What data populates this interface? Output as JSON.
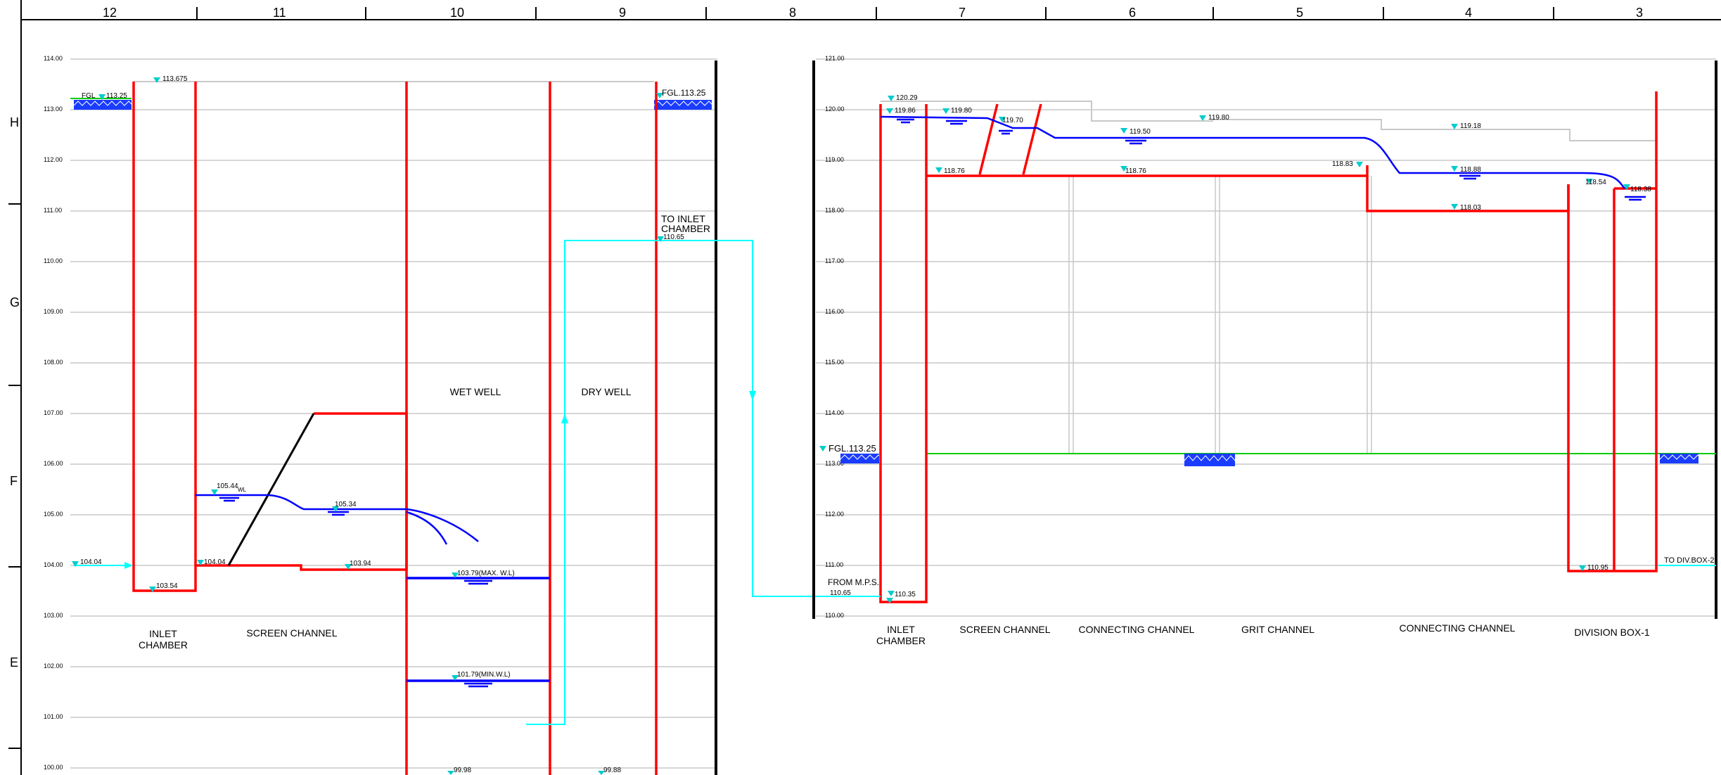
{
  "ruler": {
    "columns": [
      "12",
      "11",
      "10",
      "9",
      "8",
      "7",
      "6",
      "5",
      "4",
      "3"
    ],
    "rows": [
      "H",
      "G",
      "F",
      "E"
    ]
  },
  "left_profile": {
    "levels": [
      "114.00",
      "113.00",
      "112.00",
      "111.00",
      "110.00",
      "109.00",
      "108.00",
      "107.00",
      "106.00",
      "105.00",
      "104.00",
      "103.00",
      "102.00",
      "101.00",
      "100.00"
    ],
    "labels": {
      "inlet_chamber": [
        "INLET",
        "CHAMBER"
      ],
      "screen_channel": "SCREEN CHANNEL",
      "wet_well": "WET WELL",
      "dry_well": "DRY WELL",
      "to_inlet_chamber": [
        "TO INLET",
        "CHAMBER"
      ]
    },
    "elevations": {
      "fgl_left": "FGL",
      "fgl_left_value": "113.25",
      "top_inlet": "113.675",
      "fgl_right": "FGL.113.25",
      "to_inlet_value": "110.65",
      "wl_screen": "105.44",
      "wl_tag": "WL",
      "wl_wetwell": "105.34",
      "inflow": "104.04",
      "inlet_floor": "103.54",
      "screen_floor": "104.04",
      "screen_floor_2": "103.94",
      "max_wl": "103.79(MAX. W.L)",
      "min_wl": "101.79(MIN.W.L)",
      "bottom_a": "99.98",
      "bottom_b": "99.88"
    }
  },
  "right_profile": {
    "levels": [
      "121.00",
      "120.00",
      "119.00",
      "118.00",
      "117.00",
      "116.00",
      "115.00",
      "114.00",
      "113.00",
      "112.00",
      "111.00",
      "110.00"
    ],
    "labels": {
      "inlet_chamber": [
        "INLET",
        "CHAMBER"
      ],
      "screen_channel": "SCREEN CHANNEL",
      "connecting_channel_1": "CONNECTING CHANNEL",
      "grit_channel": "GRIT CHANNEL",
      "connecting_channel_2": "CONNECTING CHANNEL",
      "division_box": "DIVISION BOX-1",
      "from_mps": "FROM M.P.S.",
      "to_divbox": "TO DIV.BOX-2",
      "fgl": "FGL.113.25"
    },
    "elevations": {
      "top_inlet": "120.29",
      "wl_inlet": "119.86",
      "wl_screen": "119.80",
      "wl_screen_2": "119.70",
      "grit_top": "119.80",
      "wl_connecting": "119.50",
      "wl_div": "119.18",
      "screen_floor": "118.76",
      "grit_floor": "118.76",
      "step_level": "118.83",
      "div_wl": "118.88",
      "div_floor": "118.03",
      "div_box_a": "118.54",
      "div_box_b": "118.38",
      "from_mps_value": "110.65",
      "inlet_floor": "110.35",
      "div_bottom": "110.95"
    }
  },
  "colors": {
    "structure": "#ff0000",
    "water": "#0000ff",
    "pipe": "#00ffff",
    "ground": "#00cc00",
    "grid": "#c8c8c8",
    "wall": "#000000"
  },
  "icons": {
    "level_marker": "inverted-triangle-icon",
    "water_surface": "water-level-icon",
    "soil": "soil-hatch-icon",
    "flow_arrow": "arrow-icon"
  }
}
